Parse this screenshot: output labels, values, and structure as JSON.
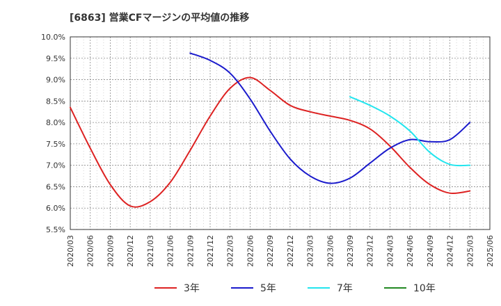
{
  "chart_data": {
    "type": "line",
    "title": "[6863]  営業CFマージンの平均値の推移",
    "xlabel": "",
    "ylabel": "",
    "ylim": [
      5.5,
      10.0
    ],
    "y_ticks": [
      "5.5%",
      "6.0%",
      "6.5%",
      "7.0%",
      "7.5%",
      "8.0%",
      "8.5%",
      "9.0%",
      "9.5%",
      "10.0%"
    ],
    "x_ticks": [
      "2020/03",
      "2020/06",
      "2020/09",
      "2020/12",
      "2021/03",
      "2021/06",
      "2021/09",
      "2021/12",
      "2022/03",
      "2022/06",
      "2022/09",
      "2022/12",
      "2023/03",
      "2023/06",
      "2023/09",
      "2023/12",
      "2024/03",
      "2024/06",
      "2024/09",
      "2024/12",
      "2025/03",
      "2025/06"
    ],
    "grid": true,
    "legend_position": "bottom",
    "series": [
      {
        "name": "3年",
        "color": "#dd2222",
        "points": [
          [
            "2020/03",
            8.35
          ],
          [
            "2020/06",
            7.4
          ],
          [
            "2020/09",
            6.55
          ],
          [
            "2020/12",
            6.05
          ],
          [
            "2021/03",
            6.15
          ],
          [
            "2021/06",
            6.6
          ],
          [
            "2021/09",
            7.35
          ],
          [
            "2021/12",
            8.15
          ],
          [
            "2022/03",
            8.8
          ],
          [
            "2022/06",
            9.05
          ],
          [
            "2022/09",
            8.75
          ],
          [
            "2022/12",
            8.4
          ],
          [
            "2023/03",
            8.25
          ],
          [
            "2023/06",
            8.15
          ],
          [
            "2023/09",
            8.05
          ],
          [
            "2023/12",
            7.85
          ],
          [
            "2024/03",
            7.45
          ],
          [
            "2024/06",
            6.95
          ],
          [
            "2024/09",
            6.55
          ],
          [
            "2024/12",
            6.35
          ],
          [
            "2025/03",
            6.4
          ]
        ]
      },
      {
        "name": "5年",
        "color": "#1a1acc",
        "points": [
          [
            "2021/09",
            9.62
          ],
          [
            "2021/12",
            9.45
          ],
          [
            "2022/03",
            9.15
          ],
          [
            "2022/06",
            8.55
          ],
          [
            "2022/09",
            7.8
          ],
          [
            "2022/12",
            7.15
          ],
          [
            "2023/03",
            6.75
          ],
          [
            "2023/06",
            6.58
          ],
          [
            "2023/09",
            6.7
          ],
          [
            "2023/12",
            7.05
          ],
          [
            "2024/03",
            7.4
          ],
          [
            "2024/06",
            7.6
          ],
          [
            "2024/09",
            7.55
          ],
          [
            "2024/12",
            7.6
          ],
          [
            "2025/03",
            8.0
          ]
        ]
      },
      {
        "name": "7年",
        "color": "#22e5ee",
        "points": [
          [
            "2023/09",
            8.6
          ],
          [
            "2023/12",
            8.4
          ],
          [
            "2024/03",
            8.15
          ],
          [
            "2024/06",
            7.8
          ],
          [
            "2024/09",
            7.3
          ],
          [
            "2024/12",
            7.02
          ],
          [
            "2025/03",
            7.0
          ]
        ]
      },
      {
        "name": "10年",
        "color": "#228822",
        "points": []
      }
    ]
  }
}
